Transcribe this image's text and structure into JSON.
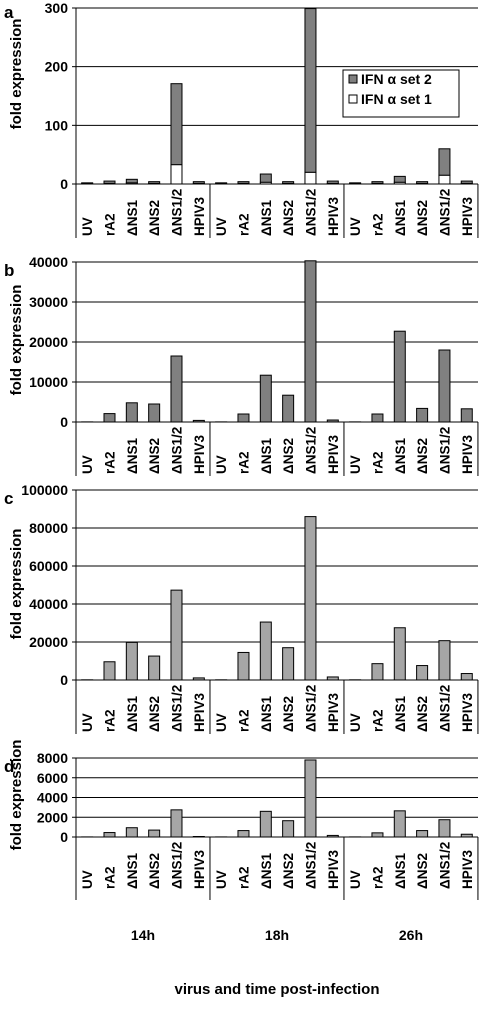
{
  "chart_data": [
    {
      "panel": "a",
      "type": "bar",
      "stacked": true,
      "ylabel": "fold expression",
      "ylim": [
        0,
        300
      ],
      "yticks": [
        "0",
        "100",
        "200",
        "300"
      ],
      "grid": true,
      "legend_position": "top-right",
      "categories": [
        "UV",
        "rA2",
        "ΔNS1",
        "ΔNS2",
        "ΔNS1/2",
        "HPIV3",
        "UV",
        "rA2",
        "ΔNS1",
        "ΔNS2",
        "ΔNS1/2",
        "HPIV3",
        "UV",
        "rA2",
        "ΔNS1",
        "ΔNS2",
        "ΔNS1/2",
        "HPIV3"
      ],
      "series": [
        {
          "name": "IFN α set 1",
          "color": "#ffffff",
          "values": [
            0.5,
            1,
            2,
            1,
            33,
            1,
            0.5,
            1,
            3,
            1,
            20,
            1,
            0.5,
            1,
            3,
            1,
            15,
            1
          ]
        },
        {
          "name": "IFN α set 2",
          "color": "#808080",
          "values": [
            1.5,
            4,
            6,
            3,
            138,
            3,
            1.5,
            3,
            14,
            3,
            279,
            4,
            1.5,
            3,
            10,
            3,
            45,
            4
          ]
        }
      ]
    },
    {
      "panel": "b",
      "type": "bar",
      "ylabel": "fold expression",
      "ylim": [
        0,
        40000
      ],
      "yticks": [
        "0",
        "10000",
        "20000",
        "30000",
        "40000"
      ],
      "grid": true,
      "categories": [
        "UV",
        "rA2",
        "ΔNS1",
        "ΔNS2",
        "ΔNS1/2",
        "HPIV3",
        "UV",
        "rA2",
        "ΔNS1",
        "ΔNS2",
        "ΔNS1/2",
        "HPIV3",
        "UV",
        "rA2",
        "ΔNS1",
        "ΔNS2",
        "ΔNS1/2",
        "HPIV3"
      ],
      "values": [
        30,
        2100,
        4800,
        4500,
        16500,
        400,
        30,
        2000,
        11700,
        6700,
        40300,
        500,
        30,
        2000,
        22700,
        3400,
        18000,
        3300
      ]
    },
    {
      "panel": "c",
      "type": "bar",
      "ylabel": "fold expression",
      "ylim": [
        0,
        100000
      ],
      "yticks": [
        "0",
        "20000",
        "40000",
        "60000",
        "80000",
        "100000"
      ],
      "grid": true,
      "categories": [
        "UV",
        "rA2",
        "ΔNS1",
        "ΔNS2",
        "ΔNS1/2",
        "HPIV3",
        "UV",
        "rA2",
        "ΔNS1",
        "ΔNS2",
        "ΔNS1/2",
        "HPIV3",
        "UV",
        "rA2",
        "ΔNS1",
        "ΔNS2",
        "ΔNS1/2",
        "HPIV3"
      ],
      "values": [
        100,
        9600,
        19800,
        12600,
        47300,
        1100,
        100,
        14500,
        30500,
        17000,
        86000,
        1600,
        100,
        8600,
        27500,
        7600,
        20700,
        3400
      ]
    },
    {
      "panel": "d",
      "type": "bar",
      "ylabel": "fold expression",
      "xlabel": "virus and time post-infection",
      "ylim": [
        0,
        8000
      ],
      "yticks": [
        "0",
        "2000",
        "4000",
        "6000",
        "8000"
      ],
      "grid": true,
      "groups": [
        "14h",
        "18h",
        "26h"
      ],
      "categories": [
        "UV",
        "rA2",
        "ΔNS1",
        "ΔNS2",
        "ΔNS1/2",
        "HPIV3",
        "UV",
        "rA2",
        "ΔNS1",
        "ΔNS2",
        "ΔNS1/2",
        "HPIV3",
        "UV",
        "rA2",
        "ΔNS1",
        "ΔNS2",
        "ΔNS1/2",
        "HPIV3"
      ],
      "values": [
        10,
        450,
        940,
        700,
        2750,
        50,
        10,
        650,
        2600,
        1650,
        7800,
        160,
        10,
        420,
        2650,
        650,
        1750,
        280
      ]
    }
  ],
  "colors": {
    "gray_dark": "#808080",
    "gray_light": "#a6a6a6",
    "white": "#ffffff"
  }
}
